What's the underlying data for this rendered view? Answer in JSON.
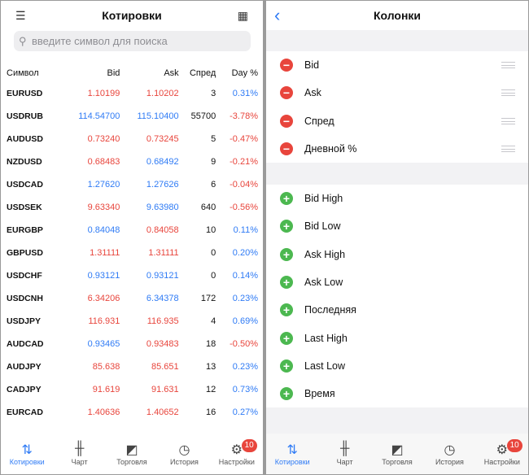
{
  "quotes": {
    "title": "Котировки",
    "list_icon": "list-icon",
    "columns_icon": "columns-icon",
    "search_placeholder": "введите символ для поиска",
    "headers": [
      "Символ",
      "Bid",
      "Ask",
      "Спред",
      "Day %"
    ],
    "rows": [
      {
        "symbol": "EURUSD",
        "bid": "1.10199",
        "bid_dir": "down",
        "ask": "1.10202",
        "ask_dir": "down",
        "spread": "3",
        "day": "0.31%",
        "day_dir": "up"
      },
      {
        "symbol": "USDRUB",
        "bid": "114.54700",
        "bid_dir": "up",
        "ask": "115.10400",
        "ask_dir": "up",
        "spread": "55700",
        "day": "-3.78%",
        "day_dir": "down"
      },
      {
        "symbol": "AUDUSD",
        "bid": "0.73240",
        "bid_dir": "down",
        "ask": "0.73245",
        "ask_dir": "down",
        "spread": "5",
        "day": "-0.47%",
        "day_dir": "down"
      },
      {
        "symbol": "NZDUSD",
        "bid": "0.68483",
        "bid_dir": "down",
        "ask": "0.68492",
        "ask_dir": "up",
        "spread": "9",
        "day": "-0.21%",
        "day_dir": "down"
      },
      {
        "symbol": "USDCAD",
        "bid": "1.27620",
        "bid_dir": "up",
        "ask": "1.27626",
        "ask_dir": "up",
        "spread": "6",
        "day": "-0.04%",
        "day_dir": "down"
      },
      {
        "symbol": "USDSEK",
        "bid": "9.63340",
        "bid_dir": "down",
        "ask": "9.63980",
        "ask_dir": "up",
        "spread": "640",
        "day": "-0.56%",
        "day_dir": "down"
      },
      {
        "symbol": "EURGBP",
        "bid": "0.84048",
        "bid_dir": "up",
        "ask": "0.84058",
        "ask_dir": "down",
        "spread": "10",
        "day": "0.11%",
        "day_dir": "up"
      },
      {
        "symbol": "GBPUSD",
        "bid": "1.31111",
        "bid_dir": "down",
        "ask": "1.31111",
        "ask_dir": "down",
        "spread": "0",
        "day": "0.20%",
        "day_dir": "up"
      },
      {
        "symbol": "USDCHF",
        "bid": "0.93121",
        "bid_dir": "up",
        "ask": "0.93121",
        "ask_dir": "up",
        "spread": "0",
        "day": "0.14%",
        "day_dir": "up"
      },
      {
        "symbol": "USDCNH",
        "bid": "6.34206",
        "bid_dir": "down",
        "ask": "6.34378",
        "ask_dir": "up",
        "spread": "172",
        "day": "0.23%",
        "day_dir": "up"
      },
      {
        "symbol": "USDJPY",
        "bid": "116.931",
        "bid_dir": "down",
        "ask": "116.935",
        "ask_dir": "down",
        "spread": "4",
        "day": "0.69%",
        "day_dir": "up"
      },
      {
        "symbol": "AUDCAD",
        "bid": "0.93465",
        "bid_dir": "up",
        "ask": "0.93483",
        "ask_dir": "down",
        "spread": "18",
        "day": "-0.50%",
        "day_dir": "down"
      },
      {
        "symbol": "AUDJPY",
        "bid": "85.638",
        "bid_dir": "down",
        "ask": "85.651",
        "ask_dir": "down",
        "spread": "13",
        "day": "0.23%",
        "day_dir": "up"
      },
      {
        "symbol": "CADJPY",
        "bid": "91.619",
        "bid_dir": "down",
        "ask": "91.631",
        "ask_dir": "down",
        "spread": "12",
        "day": "0.73%",
        "day_dir": "up"
      },
      {
        "symbol": "EURCAD",
        "bid": "1.40636",
        "bid_dir": "down",
        "ask": "1.40652",
        "ask_dir": "down",
        "spread": "16",
        "day": "0.27%",
        "day_dir": "up"
      }
    ]
  },
  "columns": {
    "title": "Колонки",
    "back_icon": "chevron-left-icon",
    "active": [
      "Bid",
      "Ask",
      "Спред",
      "Дневной %"
    ],
    "available": [
      "Bid High",
      "Bid Low",
      "Ask High",
      "Ask Low",
      "Последняя",
      "Last High",
      "Last Low",
      "Время"
    ]
  },
  "tabs": [
    {
      "label": "Котировки",
      "icon": "quotes-icon",
      "active": true
    },
    {
      "label": "Чарт",
      "icon": "chart-icon"
    },
    {
      "label": "Торговля",
      "icon": "trade-icon"
    },
    {
      "label": "История",
      "icon": "history-icon"
    },
    {
      "label": "Настройки",
      "icon": "gear-icon",
      "badge": "10"
    }
  ],
  "colors": {
    "up": "#2f7bf5",
    "down": "#e8453c",
    "add": "#4cb850"
  }
}
